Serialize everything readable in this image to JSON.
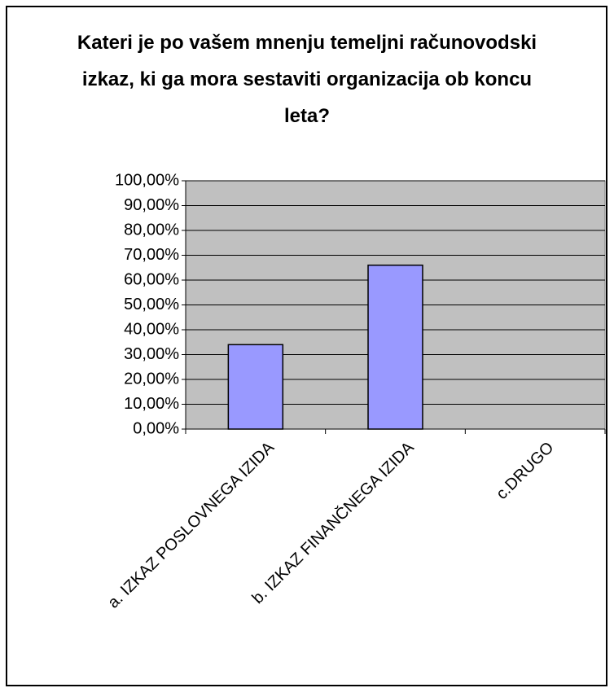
{
  "chart_data": {
    "type": "bar",
    "title": "Kateri je po vašem mnenju temeljni računovodski izkaz, ki ga mora sestaviti organizacija ob koncu leta?",
    "categories": [
      "a. IZKAZ POSLOVNEGA IZIDA",
      "b. IZKAZ FINANČNEGA IZIDA",
      "c.DRUGO"
    ],
    "values": [
      34,
      66,
      0
    ],
    "color": "#9999ff",
    "ylim": [
      0,
      100
    ],
    "yticks": [
      {
        "value": 0,
        "label": "0,00%"
      },
      {
        "value": 10,
        "label": "10,00%"
      },
      {
        "value": 20,
        "label": "20,00%"
      },
      {
        "value": 30,
        "label": "30,00%"
      },
      {
        "value": 40,
        "label": "40,00%"
      },
      {
        "value": 50,
        "label": "50,00%"
      },
      {
        "value": 60,
        "label": "60,00%"
      },
      {
        "value": 70,
        "label": "70,00%"
      },
      {
        "value": 80,
        "label": "80,00%"
      },
      {
        "value": 90,
        "label": "90,00%"
      },
      {
        "value": 100,
        "label": "100,00%"
      }
    ],
    "grid": true
  }
}
